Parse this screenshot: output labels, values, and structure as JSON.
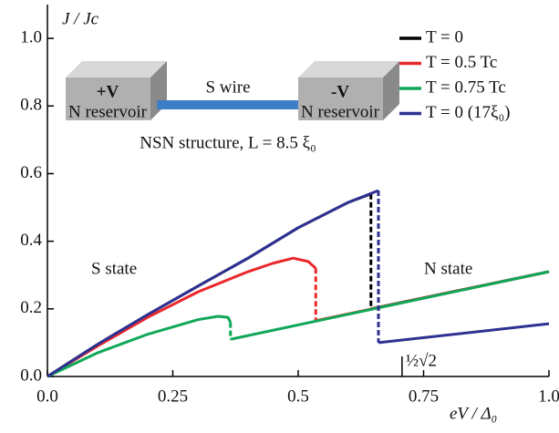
{
  "chart_data": {
    "type": "line",
    "ylabel": "J / Jc",
    "xlabel": "eV / Δ₀",
    "xlim": [
      0,
      1
    ],
    "ylim": [
      0,
      1.1
    ],
    "xticks": [
      {
        "value": 0,
        "label": "0.0"
      },
      0.25,
      0.5,
      0.75,
      {
        "value": 1,
        "label": "1.0"
      }
    ],
    "yticks": [
      {
        "value": 0,
        "label": "0.0"
      },
      0.2,
      0.4,
      0.6,
      0.8,
      {
        "value": 1,
        "label": "1.0"
      }
    ],
    "legend": "upper right",
    "series": [
      {
        "name": "T = 0",
        "color": "#000000",
        "x": [
          0,
          0.1,
          0.2,
          0.3,
          0.4,
          0.5,
          0.6,
          0.645,
          0.645,
          1.0
        ],
        "values": [
          0,
          0.095,
          0.183,
          0.267,
          0.35,
          0.44,
          0.515,
          0.54,
          0.2,
          0.31
        ]
      },
      {
        "name": "T = 0.5 Tc",
        "color": "#e8282b",
        "x": [
          0,
          0.1,
          0.2,
          0.3,
          0.4,
          0.45,
          0.49,
          0.52,
          0.535,
          0.535,
          1.0
        ],
        "values": [
          0,
          0.09,
          0.175,
          0.25,
          0.31,
          0.335,
          0.35,
          0.34,
          0.32,
          0.165,
          0.31
        ]
      },
      {
        "name": "T = 0.75 Tc",
        "color": "#0fa858",
        "x": [
          0,
          0.1,
          0.2,
          0.3,
          0.34,
          0.36,
          0.365,
          0.365,
          1.0
        ],
        "values": [
          0,
          0.07,
          0.125,
          0.168,
          0.178,
          0.175,
          0.16,
          0.11,
          0.31
        ]
      },
      {
        "name": "T = 0 (17ξ₀)",
        "color": "#2e3192",
        "x": [
          0,
          0.1,
          0.2,
          0.3,
          0.4,
          0.5,
          0.6,
          0.66,
          0.66,
          1.0
        ],
        "values": [
          0,
          0.095,
          0.183,
          0.267,
          0.35,
          0.44,
          0.515,
          0.55,
          0.1,
          0.156
        ]
      }
    ],
    "marker": {
      "x": 0.707,
      "label": "½√2"
    },
    "annotations": [
      "S state",
      "N state"
    ],
    "inset": {
      "left_box": "+V",
      "left_label": "N reservoir",
      "wire": "S wire",
      "right_box": "-V",
      "right_label": "N reservoir",
      "caption": "NSN structure, L = 8.5 ξ₀"
    }
  }
}
